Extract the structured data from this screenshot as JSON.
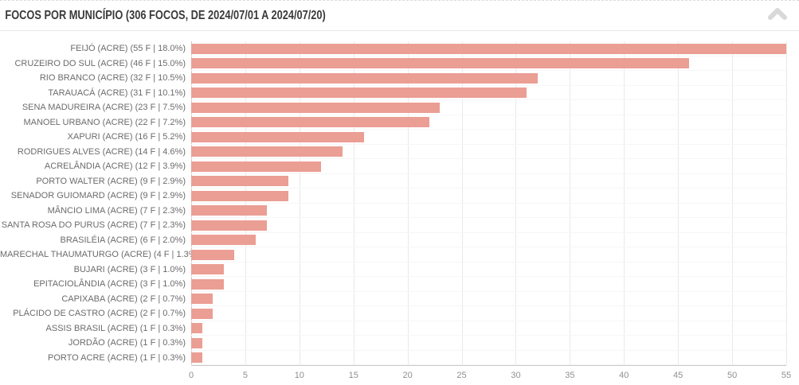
{
  "header": {
    "title": "FOCOS POR MUNICÍPIO (306 FOCOS, DE 2024/07/01 A 2024/07/20)",
    "icon": "chevron-up",
    "icon_color": "#d9d9d9"
  },
  "chart_data": {
    "type": "bar",
    "orientation": "horizontal",
    "title": "FOCOS POR MUNICÍPIO (306 FOCOS, DE 2024/07/01 A 2024/07/20)",
    "total_focos": 306,
    "period_start": "2024/07/01",
    "period_end": "2024/07/20",
    "categories": [
      "FEIJÓ (ACRE) (55 F | 18.0%)",
      "CRUZEIRO DO SUL (ACRE) (46 F | 15.0%)",
      "RIO BRANCO (ACRE) (32 F | 10.5%)",
      "TARAUACÁ (ACRE) (31 F | 10.1%)",
      "SENA MADUREIRA (ACRE) (23 F | 7.5%)",
      "MANOEL URBANO (ACRE) (22 F | 7.2%)",
      "XAPURI (ACRE) (16 F | 5.2%)",
      "RODRIGUES ALVES (ACRE) (14 F | 4.6%)",
      "ACRELÂNDIA (ACRE) (12 F | 3.9%)",
      "PORTO WALTER (ACRE) (9 F | 2.9%)",
      "SENADOR GUIOMARD (ACRE) (9 F | 2.9%)",
      "MÂNCIO LIMA (ACRE) (7 F | 2.3%)",
      "SANTA ROSA DO PURUS (ACRE) (7 F | 2.3%)",
      "BRASILÉIA (ACRE) (6 F | 2.0%)",
      "MARECHAL THAUMATURGO (ACRE) (4 F | 1.3%)",
      "BUJARI (ACRE) (3 F | 1.0%)",
      "EPITACIOLÂNDIA (ACRE) (3 F | 1.0%)",
      "CAPIXABA (ACRE) (2 F | 0.7%)",
      "PLÁCIDO DE CASTRO (ACRE) (2 F | 0.7%)",
      "ASSIS BRASIL (ACRE) (1 F | 0.3%)",
      "JORDÃO (ACRE) (1 F | 0.3%)",
      "PORTO ACRE (ACRE) (1 F | 0.3%)"
    ],
    "values": [
      55,
      46,
      32,
      31,
      23,
      22,
      16,
      14,
      12,
      9,
      9,
      7,
      7,
      6,
      4,
      3,
      3,
      2,
      2,
      1,
      1,
      1
    ],
    "xlabel": "",
    "ylabel": "",
    "xlim": [
      0,
      55
    ],
    "x_ticks": [
      0,
      5,
      10,
      15,
      20,
      25,
      30,
      35,
      40,
      45,
      50,
      55
    ],
    "bar_color": "#eb9e94",
    "grid": true,
    "legend": false
  }
}
